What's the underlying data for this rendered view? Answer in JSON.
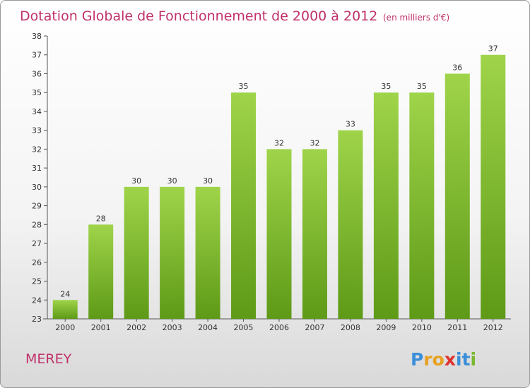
{
  "chart_data": {
    "type": "bar",
    "title": "Dotation Globale de Fonctionnement de 2000 à 2012",
    "subtitle": "(en milliers d'€)",
    "categories": [
      "2000",
      "2001",
      "2002",
      "2003",
      "2004",
      "2005",
      "2006",
      "2007",
      "2008",
      "2009",
      "2010",
      "2011",
      "2012"
    ],
    "values": [
      24,
      28,
      30,
      30,
      30,
      35,
      32,
      32,
      33,
      35,
      35,
      36,
      37
    ],
    "ylim": [
      23,
      38
    ],
    "yticks": [
      23,
      24,
      25,
      26,
      27,
      28,
      29,
      30,
      31,
      32,
      33,
      34,
      35,
      36,
      37,
      38
    ],
    "grid": false,
    "bar_color_top": "#9fd44a",
    "bar_color_bottom": "#5e9a17"
  },
  "commune": "MEREY",
  "logo": {
    "text": "Proxiti",
    "letters": [
      "P",
      "r",
      "o",
      "x",
      "i",
      "t",
      "i"
    ],
    "colors": [
      "#3a8fd9",
      "#e8a020",
      "#e8a020",
      "#e03030",
      "#3a8fd9",
      "#3a8fd9",
      "#7ab830"
    ]
  }
}
